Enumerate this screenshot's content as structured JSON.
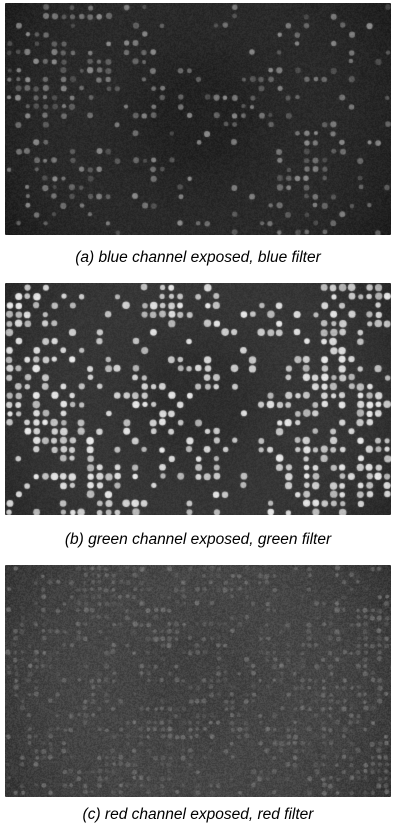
{
  "figure": {
    "panels": [
      {
        "caption": "(a)  blue channel exposed, blue filter",
        "channel": "blue",
        "background": "#1b1b1b",
        "dot_color": "#8c8c8c"
      },
      {
        "caption": "(b)  green channel exposed, green filter",
        "channel": "green",
        "background": "#2a2a2a",
        "dot_color": "#e8e8e8"
      },
      {
        "caption": "(c)  red channel exposed, red filter",
        "channel": "red",
        "background": "#3a3a3a",
        "dot_color": "#6e6e6e"
      }
    ]
  }
}
